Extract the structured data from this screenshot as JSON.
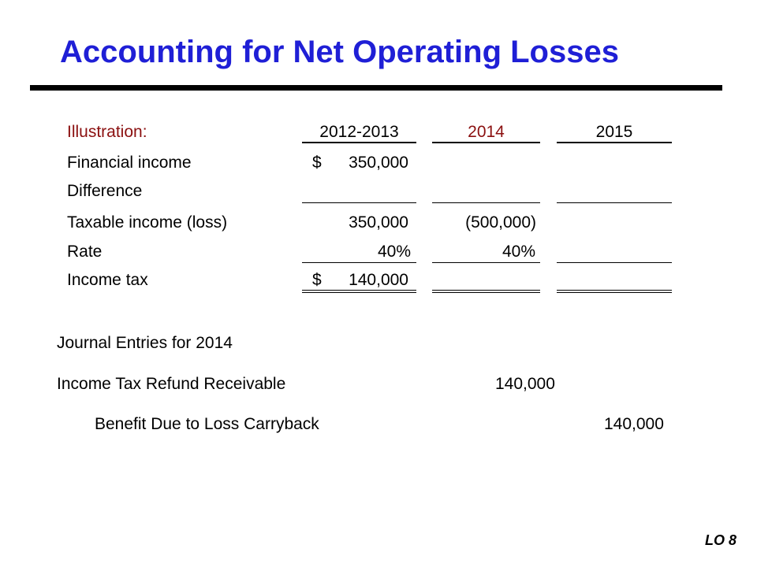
{
  "title": "Accounting for Net Operating Losses",
  "illustration": {
    "label": "Illustration:",
    "columns": [
      "2012-2013",
      "2014",
      "2015"
    ],
    "rows": {
      "financial_income": {
        "label": "Financial income",
        "c1_currency": "$",
        "c1": "350,000",
        "c2": "",
        "c3": ""
      },
      "difference": {
        "label": "Difference",
        "c1": "",
        "c2": "",
        "c3": ""
      },
      "taxable_income": {
        "label": "Taxable income (loss)",
        "c1": "350,000",
        "c2": "(500,000)",
        "c3": ""
      },
      "rate": {
        "label": "Rate",
        "c1": "40%",
        "c2": "40%",
        "c3": ""
      },
      "income_tax": {
        "label": "Income tax",
        "c1_currency": "$",
        "c1": "140,000",
        "c2": "",
        "c3": ""
      }
    }
  },
  "journal": {
    "heading": "Journal Entries for 2014",
    "debit": {
      "account": "Income Tax Refund Receivable",
      "amount": "140,000"
    },
    "credit": {
      "account": "Benefit Due to Loss Carryback",
      "amount": "140,000"
    }
  },
  "footer": {
    "lo": "LO 8"
  }
}
